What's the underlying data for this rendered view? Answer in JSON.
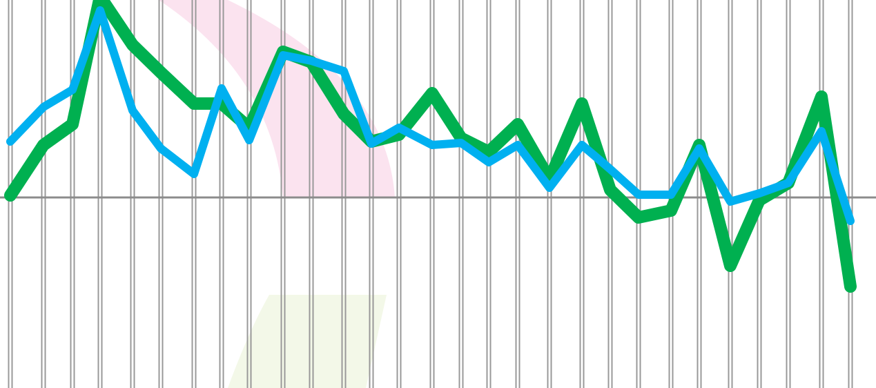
{
  "chart_data": {
    "type": "line",
    "x": [
      15,
      63,
      105,
      145,
      192,
      233,
      281,
      321,
      361,
      410,
      451,
      498,
      538,
      578,
      626,
      668,
      708,
      750,
      796,
      843,
      884,
      925,
      972,
      1013,
      1058,
      1100,
      1142,
      1190,
      1232
    ],
    "xlim": [
      0,
      1269
    ],
    "ylim": [
      -27.6,
      28.6
    ],
    "series": [
      {
        "color": "#00b050",
        "values": [
          0.3,
          7.6,
          10.6,
          29.1,
          22.1,
          18.1,
          13.6,
          13.6,
          10.1,
          21.1,
          19.6,
          12.1,
          8.1,
          9.1,
          15.1,
          8.6,
          6.6,
          10.6,
          2.6,
          13.6,
          1.1,
          -2.9,
          -1.9,
          7.6,
          -9.9,
          -0.4,
          2.1,
          14.6,
          -12.9
        ]
      },
      {
        "color": "#00b0f0",
        "values": [
          8.1,
          13.1,
          15.6,
          27.1,
          12.6,
          7.1,
          3.4,
          15.8,
          8.3,
          20.6,
          19.8,
          18.3,
          7.8,
          10.1,
          7.6,
          7.9,
          5.1,
          7.6,
          1.4,
          7.6,
          4.1,
          0.4,
          0.4,
          7.1,
          -0.6,
          0.6,
          2.1,
          9.6,
          -3.4
        ]
      }
    ],
    "grid": true
  }
}
